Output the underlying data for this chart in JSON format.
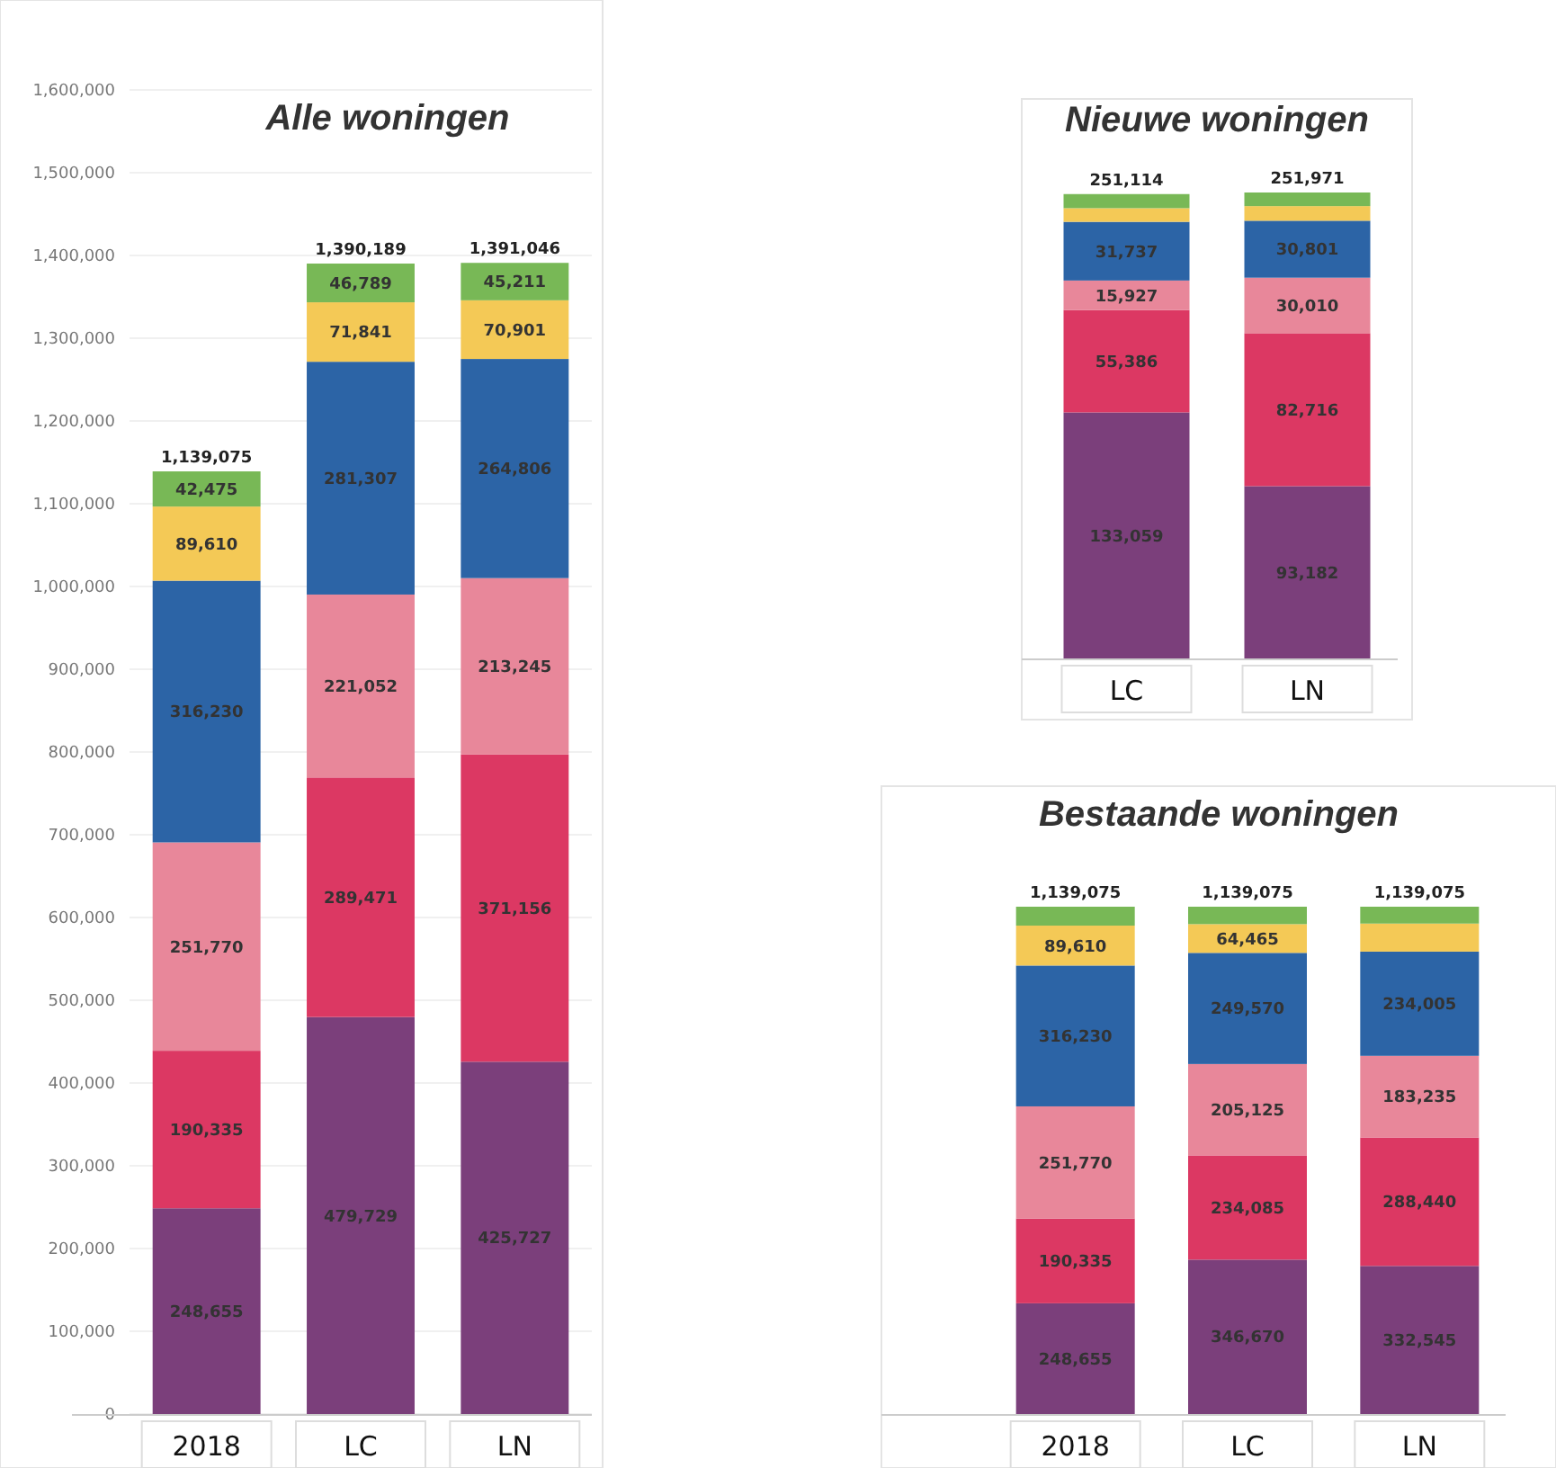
{
  "chart_data": [
    {
      "type": "bar",
      "title": "Alle woningen",
      "stacked": true,
      "categories": [
        "2018",
        "LC",
        "LN"
      ],
      "ylim": [
        0,
        1600000
      ],
      "yticks": [
        {
          "value": 0,
          "label": "0"
        },
        {
          "value": 100000,
          "label": "100,000"
        },
        {
          "value": 200000,
          "label": "200,000"
        },
        {
          "value": 300000,
          "label": "300,000"
        },
        {
          "value": 400000,
          "label": "400,000"
        },
        {
          "value": 500000,
          "label": "500,000"
        },
        {
          "value": 600000,
          "label": "600,000"
        },
        {
          "value": 700000,
          "label": "700,000"
        },
        {
          "value": 800000,
          "label": "800,000"
        },
        {
          "value": 900000,
          "label": "900,000"
        },
        {
          "value": 1000000,
          "label": "1,000,000"
        },
        {
          "value": 1100000,
          "label": "1,100,000"
        },
        {
          "value": 1200000,
          "label": "1,200,000"
        },
        {
          "value": 1300000,
          "label": "1,300,000"
        },
        {
          "value": 1400000,
          "label": "1,400,000"
        },
        {
          "value": 1500000,
          "label": "1,500,000"
        },
        {
          "value": 1600000,
          "label": "1,600,000"
        }
      ],
      "grid": "y",
      "totals": [
        "1,139,075",
        "1,390,189",
        "1,391,046"
      ],
      "series": [
        {
          "color": "#7b3f7b",
          "values": [
            248655,
            479729,
            425727
          ],
          "value_labels": [
            "248,655",
            "479,729",
            "425,727"
          ]
        },
        {
          "color": "#dc3863",
          "values": [
            190335,
            289471,
            371156
          ],
          "value_labels": [
            "190,335",
            "289,471",
            "371,156"
          ]
        },
        {
          "color": "#e8879a",
          "values": [
            251770,
            221052,
            213245
          ],
          "value_labels": [
            "251,770",
            "221,052",
            "213,245"
          ]
        },
        {
          "color": "#2c64a6",
          "values": [
            316230,
            281307,
            264806
          ],
          "value_labels": [
            "316,230",
            "281,307",
            "264,806"
          ]
        },
        {
          "color": "#f4c956",
          "values": [
            89610,
            71841,
            70901
          ],
          "value_labels": [
            "89,610",
            "71,841",
            "70,901"
          ]
        },
        {
          "color": "#78b856",
          "values": [
            42475,
            46789,
            45211
          ],
          "value_labels": [
            "42,475",
            "46,789",
            "45,211"
          ]
        }
      ]
    },
    {
      "type": "bar",
      "title": "Nieuwe woningen",
      "stacked": true,
      "categories": [
        "LC",
        "LN"
      ],
      "tick_labels": "x",
      "totals": [
        "251,114",
        "251,971"
      ],
      "series": [
        {
          "color": "#7b3f7b",
          "values": [
            133059,
            93182
          ],
          "value_labels": [
            "133,059",
            "93,182"
          ]
        },
        {
          "color": "#dc3863",
          "values": [
            55386,
            82716
          ],
          "value_labels": [
            "55,386",
            "82,716"
          ]
        },
        {
          "color": "#e8879a",
          "values": [
            15927,
            30010
          ],
          "value_labels": [
            "15,927",
            "30,010"
          ]
        },
        {
          "color": "#2c64a6",
          "values": [
            31737,
            30801
          ],
          "value_labels": [
            "31,737",
            "30,801"
          ]
        },
        {
          "color": "#f4c956",
          "values": [
            7376,
            7901
          ],
          "value_labels": [
            null,
            null
          ]
        },
        {
          "color": "#78b856",
          "values": [
            7629,
            7361
          ],
          "value_labels": [
            null,
            null
          ]
        }
      ]
    },
    {
      "type": "bar",
      "title": "Bestaande woningen",
      "stacked": true,
      "categories": [
        "2018",
        "LC",
        "LN"
      ],
      "tick_labels": "x",
      "totals": [
        "1,139,075",
        "1,139,075",
        "1,139,075"
      ],
      "series": [
        {
          "color": "#7b3f7b",
          "values": [
            248655,
            346670,
            332545
          ],
          "value_labels": [
            "248,655",
            "346,670",
            "332,545"
          ]
        },
        {
          "color": "#dc3863",
          "values": [
            190335,
            234085,
            288440
          ],
          "value_labels": [
            "190,335",
            "234,085",
            "288,440"
          ]
        },
        {
          "color": "#e8879a",
          "values": [
            251770,
            205125,
            183235
          ],
          "value_labels": [
            "251,770",
            "205,125",
            "183,235"
          ]
        },
        {
          "color": "#2c64a6",
          "values": [
            316230,
            249570,
            234005
          ],
          "value_labels": [
            "316,230",
            "249,570",
            "234,005"
          ]
        },
        {
          "color": "#f4c956",
          "values": [
            89610,
            64465,
            63000
          ],
          "value_labels": [
            "89,610",
            "64,465",
            null
          ]
        },
        {
          "color": "#78b856",
          "values": [
            42475,
            39160,
            37850
          ],
          "value_labels": [
            null,
            null,
            null
          ]
        }
      ]
    }
  ]
}
